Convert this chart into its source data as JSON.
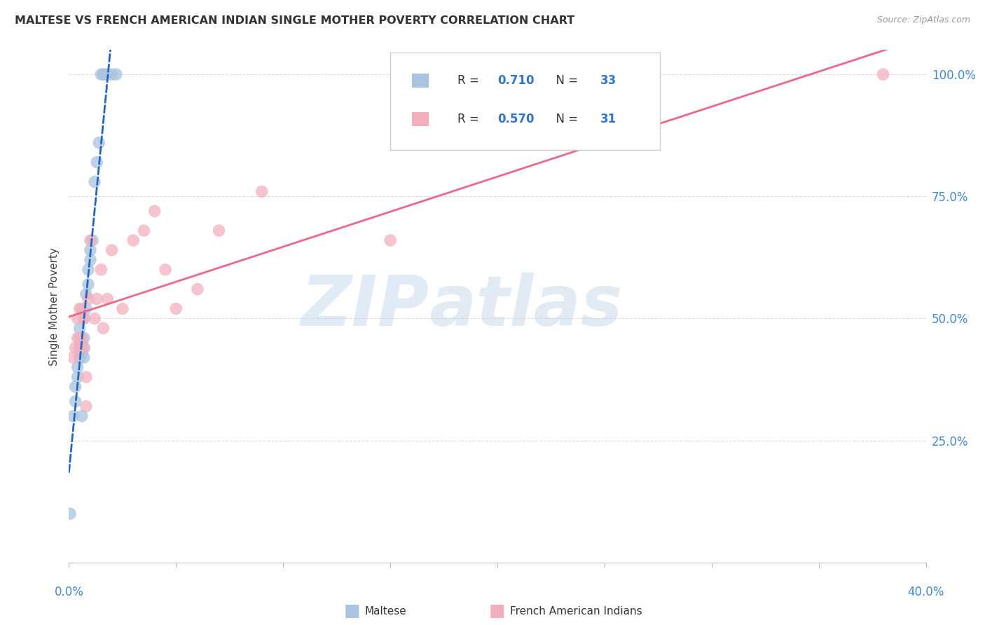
{
  "title": "MALTESE VS FRENCH AMERICAN INDIAN SINGLE MOTHER POVERTY CORRELATION CHART",
  "source": "Source: ZipAtlas.com",
  "ylabel": "Single Mother Poverty",
  "legend_1_r": "0.710",
  "legend_1_n": "33",
  "legend_2_r": "0.570",
  "legend_2_n": "31",
  "maltese_color": "#a8c4e0",
  "french_color": "#f2b0be",
  "maltese_line_color": "#2266bb",
  "french_line_color": "#ee6688",
  "watermark_zip": "ZIP",
  "watermark_atlas": "atlas",
  "xlim": [
    0.0,
    0.4
  ],
  "ylim": [
    0.0,
    1.05
  ],
  "x_ticks": [
    0.0,
    0.05,
    0.1,
    0.15,
    0.2,
    0.25,
    0.3,
    0.35,
    0.4
  ],
  "y_ticks": [
    0.25,
    0.5,
    0.75,
    1.0
  ],
  "maltese_x": [
    0.0005,
    0.002,
    0.003,
    0.003,
    0.004,
    0.004,
    0.005,
    0.005,
    0.005,
    0.005,
    0.006,
    0.006,
    0.006,
    0.007,
    0.007,
    0.007,
    0.007,
    0.008,
    0.008,
    0.009,
    0.009,
    0.01,
    0.01,
    0.011,
    0.012,
    0.013,
    0.014,
    0.015,
    0.016,
    0.017,
    0.018,
    0.02,
    0.022
  ],
  "maltese_y": [
    0.1,
    0.3,
    0.33,
    0.36,
    0.38,
    0.4,
    0.42,
    0.44,
    0.46,
    0.48,
    0.3,
    0.43,
    0.45,
    0.42,
    0.44,
    0.46,
    0.5,
    0.52,
    0.55,
    0.57,
    0.6,
    0.62,
    0.64,
    0.66,
    0.78,
    0.82,
    0.86,
    1.0,
    1.0,
    1.0,
    1.0,
    1.0,
    1.0
  ],
  "french_x": [
    0.002,
    0.003,
    0.004,
    0.004,
    0.005,
    0.005,
    0.006,
    0.006,
    0.007,
    0.007,
    0.008,
    0.008,
    0.009,
    0.01,
    0.012,
    0.013,
    0.015,
    0.016,
    0.018,
    0.02,
    0.025,
    0.03,
    0.035,
    0.04,
    0.045,
    0.05,
    0.06,
    0.07,
    0.09,
    0.15,
    0.38
  ],
  "french_y": [
    0.42,
    0.44,
    0.46,
    0.5,
    0.44,
    0.52,
    0.46,
    0.52,
    0.44,
    0.5,
    0.32,
    0.38,
    0.54,
    0.66,
    0.5,
    0.54,
    0.6,
    0.48,
    0.54,
    0.64,
    0.52,
    0.66,
    0.68,
    0.72,
    0.6,
    0.52,
    0.56,
    0.68,
    0.76,
    0.66,
    1.0
  ]
}
